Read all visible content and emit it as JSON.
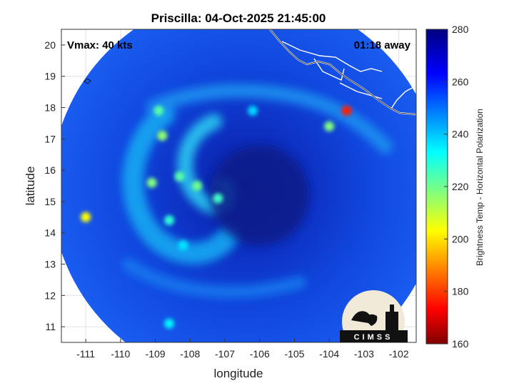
{
  "chart_data": {
    "type": "heatmap",
    "title": "Priscilla: 04-Oct-2025 21:45:00",
    "annotations": {
      "vmax": "Vmax: 40 kts",
      "time_away": "01:18 away"
    },
    "xlabel": "longitude",
    "ylabel": "latitude",
    "xlim": [
      -111.7,
      -101.5
    ],
    "ylim": [
      10.5,
      20.5
    ],
    "xticks": [
      -111,
      -110,
      -109,
      -108,
      -107,
      -106,
      -105,
      -104,
      -103,
      -102
    ],
    "yticks": [
      11,
      12,
      13,
      14,
      15,
      16,
      17,
      18,
      19,
      20
    ],
    "grid": true,
    "colorbar": {
      "label": "Brightness Temp - Horizontal Polarization",
      "range": [
        160,
        280
      ],
      "ticks": [
        160,
        180,
        200,
        220,
        240,
        260,
        280
      ],
      "colormap": "jet"
    },
    "swath": {
      "center_lon": -106.4,
      "center_lat": 15.4,
      "radius_deg": 5.6,
      "background_tb": 262
    },
    "storm_center": {
      "lon": -106.0,
      "lat": 15.2
    },
    "features": [
      {
        "lon": -108.9,
        "lat": 17.9,
        "tb": 225
      },
      {
        "lon": -108.8,
        "lat": 17.1,
        "tb": 218
      },
      {
        "lon": -109.1,
        "lat": 15.6,
        "tb": 220
      },
      {
        "lon": -108.3,
        "lat": 15.8,
        "tb": 225
      },
      {
        "lon": -107.8,
        "lat": 15.5,
        "tb": 222
      },
      {
        "lon": -107.2,
        "lat": 15.1,
        "tb": 228
      },
      {
        "lon": -108.6,
        "lat": 14.4,
        "tb": 230
      },
      {
        "lon": -108.2,
        "lat": 13.6,
        "tb": 238
      },
      {
        "lon": -111.0,
        "lat": 14.5,
        "tb": 205
      },
      {
        "lon": -103.5,
        "lat": 17.9,
        "tb": 178
      },
      {
        "lon": -104.0,
        "lat": 17.4,
        "tb": 220
      },
      {
        "lon": -106.2,
        "lat": 17.9,
        "tb": 240
      },
      {
        "lon": -108.6,
        "lat": 11.1,
        "tb": 236
      }
    ],
    "logo_text": "CIMSS"
  }
}
